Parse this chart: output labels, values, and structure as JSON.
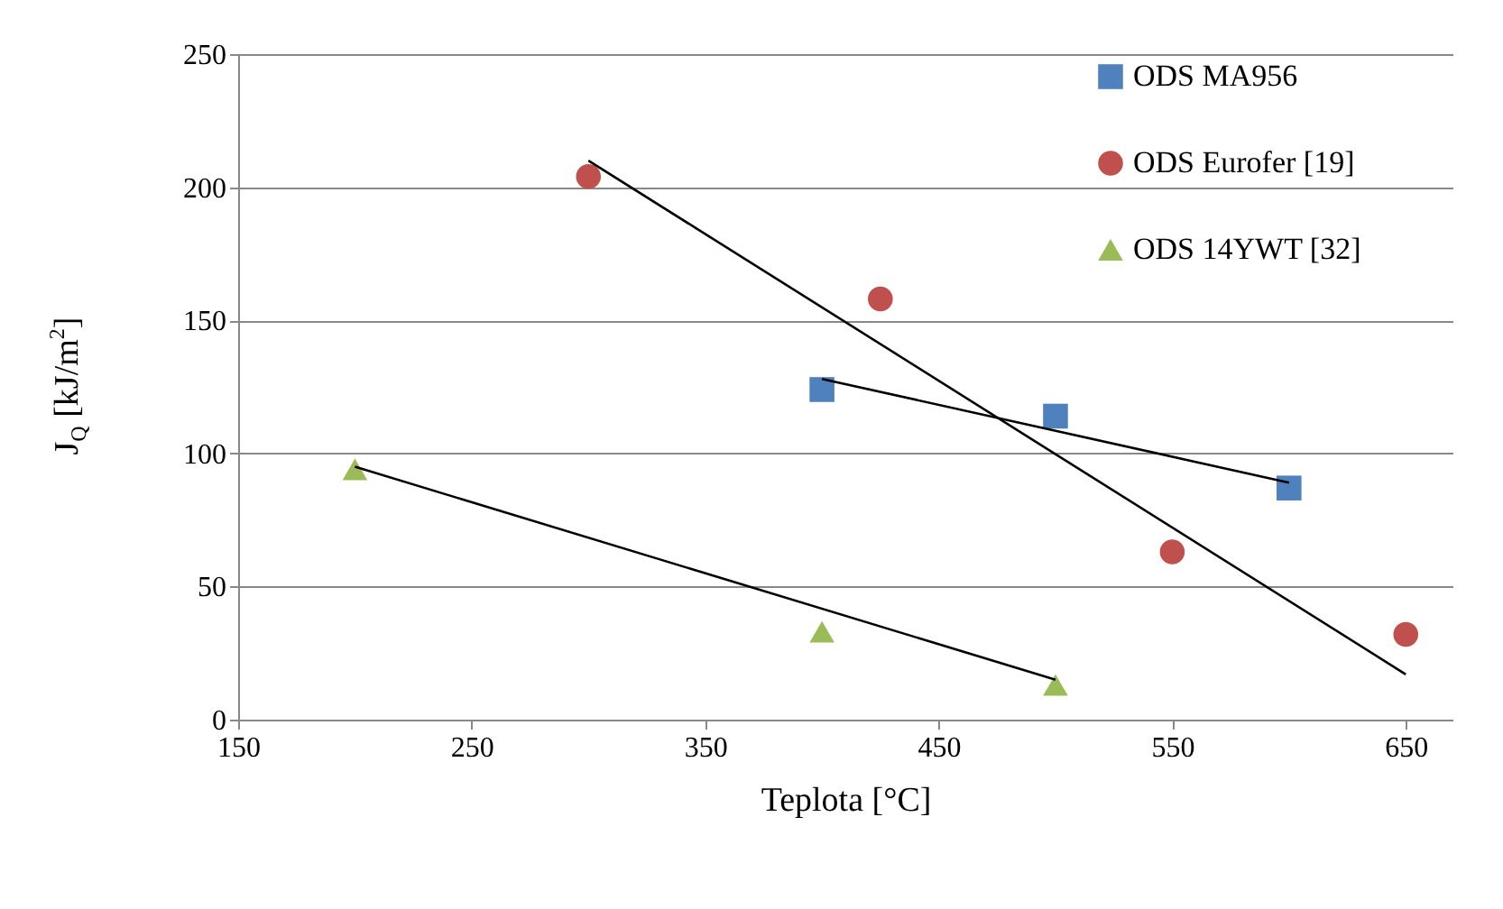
{
  "chart_data": {
    "type": "scatter",
    "xlabel": "Teplota  [°C]",
    "ylabel": "J$_{Q}$ [kJ/m$^{2}$]",
    "xlim": [
      150,
      670
    ],
    "xticks": [
      150,
      250,
      350,
      450,
      550,
      650
    ],
    "ylim": [
      0,
      250
    ],
    "yticks": [
      0,
      50,
      100,
      150,
      200,
      250
    ],
    "grid": "y",
    "legend": "top right",
    "series": [
      {
        "name": "ODS MA956",
        "type": "scatter",
        "marker": "square",
        "color": "#4f81bd",
        "x": [
          400,
          500,
          600
        ],
        "values": [
          124,
          114,
          87
        ]
      },
      {
        "name": "ODS Eurofer [19]",
        "type": "scatter",
        "marker": "circle",
        "color": "#c0504d",
        "x": [
          300,
          425,
          550,
          650
        ],
        "values": [
          204,
          158,
          63,
          32
        ]
      },
      {
        "name": "ODS 14YWT [32]",
        "type": "scatter",
        "marker": "triangle",
        "color": "#9bbb59",
        "x": [
          200,
          400,
          500
        ],
        "values": [
          94,
          33,
          13
        ]
      },
      {
        "type": "line",
        "color": "#000000",
        "x": [
          400,
          600
        ],
        "values": [
          128,
          89
        ]
      },
      {
        "type": "line",
        "color": "#000000",
        "x": [
          300,
          650
        ],
        "values": [
          210,
          17
        ]
      },
      {
        "type": "line",
        "color": "#000000",
        "x": [
          200,
          500
        ],
        "values": [
          95,
          15
        ]
      }
    ]
  }
}
